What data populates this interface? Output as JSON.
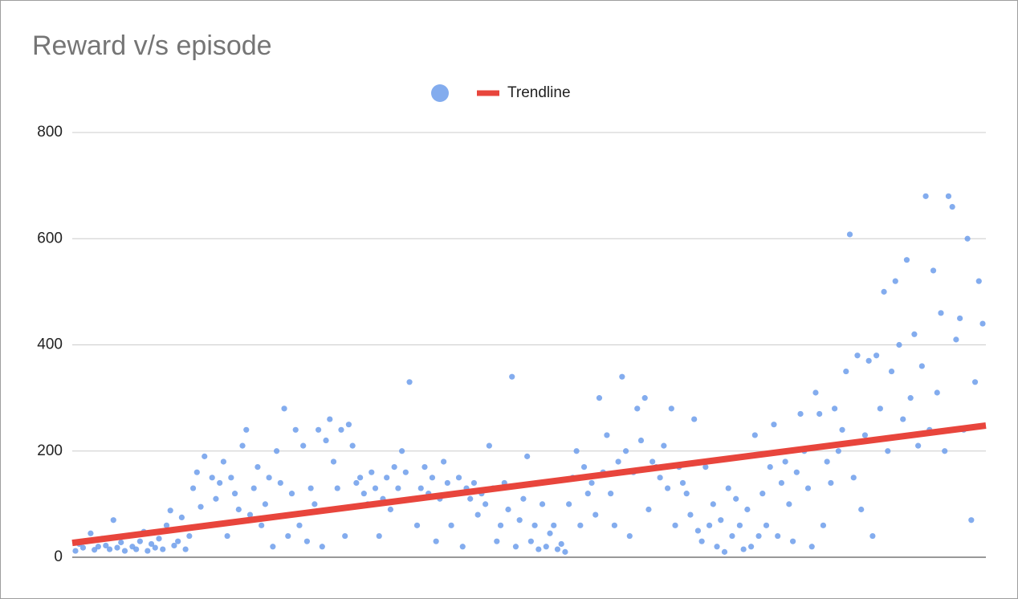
{
  "chart_data": {
    "type": "scatter",
    "title": "Reward v/s episode",
    "ylim": [
      0,
      800
    ],
    "yticks": [
      0,
      200,
      400,
      600,
      800
    ],
    "grid": true,
    "series": [
      {
        "color": "#6d9eeb",
        "values": [
          12,
          25,
          18,
          30,
          45,
          14,
          20,
          35,
          22,
          15,
          70,
          18,
          28,
          12,
          40,
          20,
          15,
          30,
          48,
          12,
          25,
          18,
          35,
          15,
          60,
          88,
          22,
          30,
          75,
          15,
          40,
          130,
          160,
          95,
          190,
          60,
          150,
          110,
          140,
          180,
          40,
          150,
          120,
          90,
          210,
          240,
          80,
          130,
          170,
          60,
          100,
          150,
          20,
          200,
          140,
          280,
          40,
          120,
          240,
          60,
          210,
          30,
          130,
          100,
          240,
          20,
          220,
          260,
          180,
          130,
          240,
          40,
          250,
          210,
          140,
          150,
          120,
          100,
          160,
          130,
          40,
          110,
          150,
          90,
          170,
          130,
          200,
          160,
          330,
          110,
          60,
          130,
          170,
          120,
          150,
          30,
          110,
          180,
          140,
          60,
          120,
          150,
          20,
          130,
          110,
          140,
          80,
          120,
          100,
          210,
          130,
          30,
          60,
          140,
          90,
          340,
          20,
          70,
          110,
          190,
          30,
          60,
          15,
          100,
          20,
          45,
          60,
          15,
          25,
          10,
          100,
          150,
          200,
          60,
          170,
          120,
          140,
          80,
          300,
          160,
          230,
          120,
          60,
          180,
          340,
          200,
          40,
          160,
          280,
          220,
          300,
          90,
          180,
          170,
          150,
          210,
          130,
          280,
          60,
          170,
          140,
          120,
          80,
          260,
          50,
          30,
          170,
          60,
          100,
          20,
          70,
          10,
          130,
          40,
          110,
          60,
          15,
          90,
          20,
          230,
          40,
          120,
          60,
          170,
          250,
          40,
          140,
          180,
          100,
          30,
          160,
          270,
          200,
          130,
          20,
          310,
          270,
          60,
          180,
          140,
          280,
          200,
          240,
          350,
          608,
          150,
          380,
          90,
          230,
          370,
          40,
          380,
          280,
          500,
          200,
          350,
          520,
          400,
          260,
          560,
          300,
          420,
          210,
          360,
          680,
          240,
          540,
          310,
          460,
          200,
          680,
          660,
          410,
          450,
          240,
          600,
          70,
          330,
          520,
          440
        ]
      }
    ],
    "trendline": {
      "name": "Trendline",
      "color": "#e8453c",
      "values": [
        27,
        248
      ]
    }
  }
}
